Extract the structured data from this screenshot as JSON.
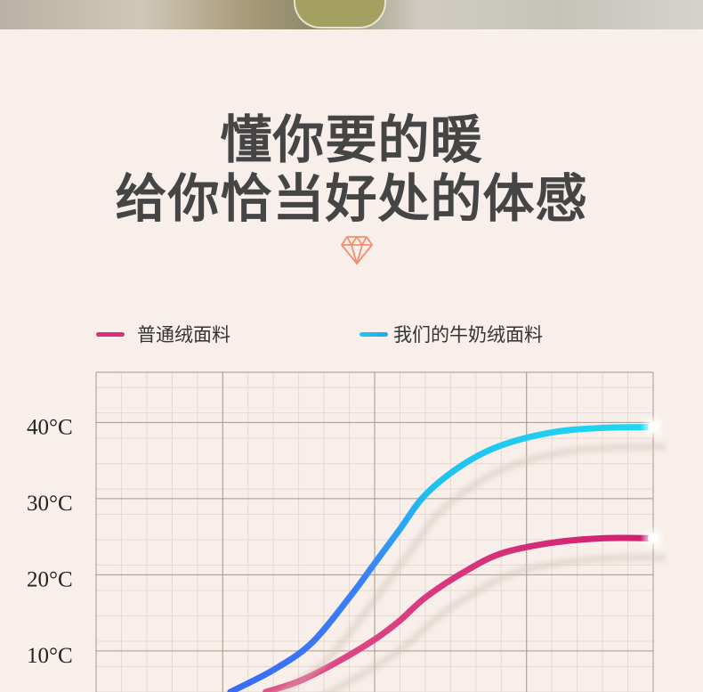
{
  "headline": {
    "line1": "懂你要的暖",
    "line2": "给你恰当好处的体感"
  },
  "icons": {
    "divider": "diamond-icon"
  },
  "chart_data": {
    "type": "line",
    "title": "",
    "xlabel": "",
    "ylabel": "",
    "ylim": [
      4.6,
      46.6
    ],
    "xlim": [
      0,
      22
    ],
    "yticks": [
      "10°C",
      "20°C",
      "30°C",
      "40°C"
    ],
    "ytick_values": [
      10,
      20,
      30,
      40
    ],
    "grid": true,
    "legend_position": "top",
    "series": [
      {
        "name": "普通绒面料",
        "color": "#d6307a",
        "points": [
          [
            6.7,
            4.6
          ],
          [
            8,
            6
          ],
          [
            9.5,
            8.5
          ],
          [
            11,
            11.5
          ],
          [
            12,
            14
          ],
          [
            13,
            17
          ],
          [
            14.5,
            20.3
          ],
          [
            16,
            22.8
          ],
          [
            18,
            24.2
          ],
          [
            20,
            24.8
          ],
          [
            22,
            24.8
          ]
        ]
      },
      {
        "name": "我们的牛奶绒面料",
        "color": "#1fc8f0",
        "start_color": "#3a6cf5",
        "points": [
          [
            5.3,
            4.6
          ],
          [
            7,
            7.5
          ],
          [
            8.5,
            11
          ],
          [
            10,
            17
          ],
          [
            11,
            21.5
          ],
          [
            12,
            26
          ],
          [
            13,
            30.5
          ],
          [
            14.5,
            34.5
          ],
          [
            16,
            37
          ],
          [
            18,
            38.7
          ],
          [
            20,
            39.3
          ],
          [
            22,
            39.4
          ]
        ]
      }
    ]
  }
}
